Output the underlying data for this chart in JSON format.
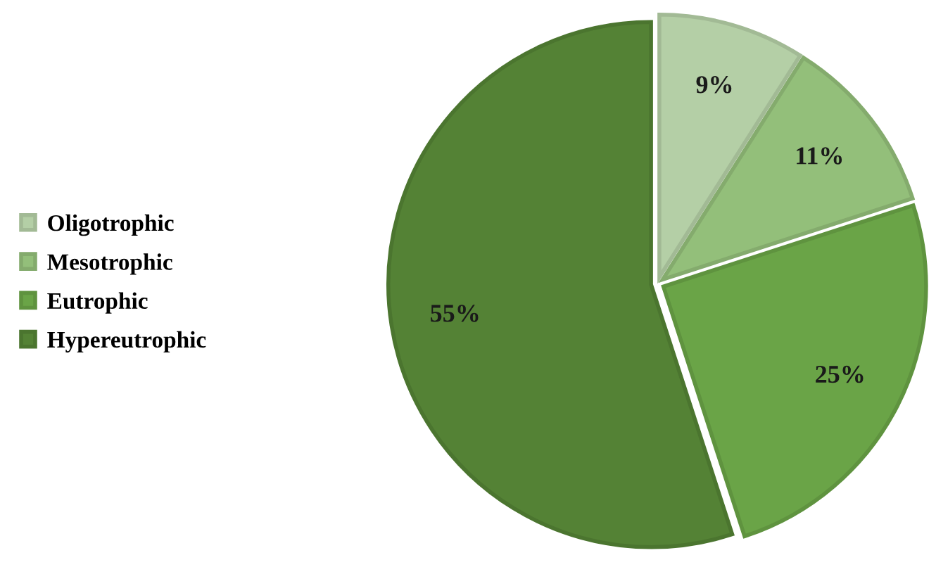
{
  "chart_data": {
    "type": "pie",
    "categories": [
      "Oligotrophic",
      "Mesotrophic",
      "Eutrophic",
      "Hypereutrophic"
    ],
    "values": [
      9,
      11,
      25,
      55
    ],
    "colors": [
      "#b4cfa6",
      "#93bf7a",
      "#6aa447",
      "#548235"
    ],
    "value_labels": [
      "9%",
      "11%",
      "25%",
      "55%"
    ],
    "legend": "left"
  }
}
